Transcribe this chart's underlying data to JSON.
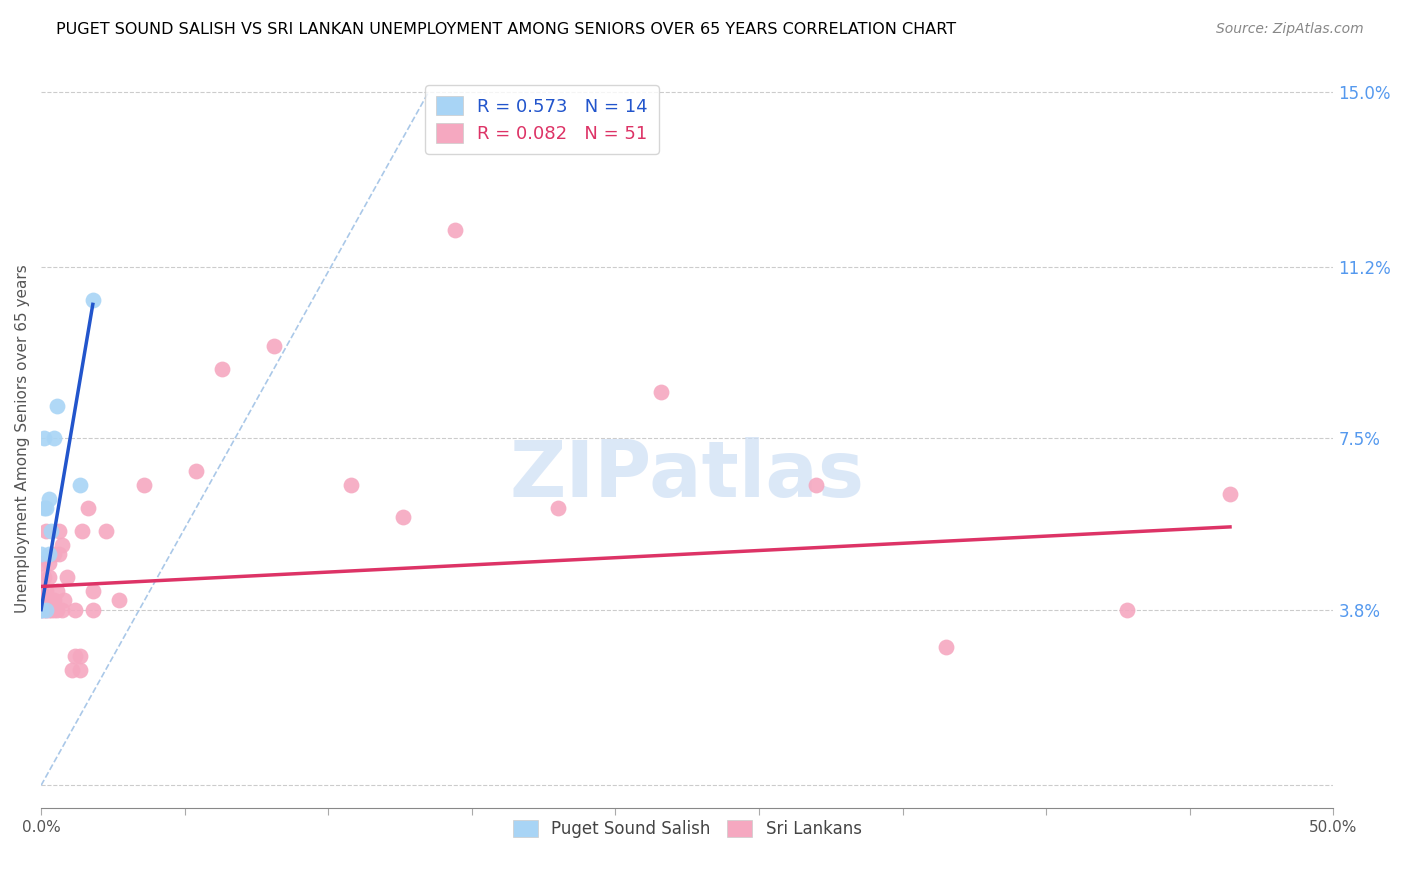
{
  "title": "PUGET SOUND SALISH VS SRI LANKAN UNEMPLOYMENT AMONG SENIORS OVER 65 YEARS CORRELATION CHART",
  "source": "Source: ZipAtlas.com",
  "ylabel": "Unemployment Among Seniors over 65 years",
  "xlim": [
    0.0,
    0.5
  ],
  "ylim": [
    -0.005,
    0.155
  ],
  "xticks": [
    0.0,
    0.05556,
    0.11111,
    0.16667,
    0.22222,
    0.27778,
    0.33333,
    0.38889,
    0.44444,
    0.5
  ],
  "xtick_labels_show": [
    "0.0%",
    "",
    "",
    "",
    "",
    "",
    "",
    "",
    "",
    "50.0%"
  ],
  "ytick_vals_right": [
    0.0,
    0.038,
    0.075,
    0.112,
    0.15
  ],
  "ytick_labels_right": [
    "",
    "3.8%",
    "7.5%",
    "11.2%",
    "15.0%"
  ],
  "legend1_label": "R = 0.573   N = 14",
  "legend2_label": "R = 0.082   N = 51",
  "puget_color": "#a8d4f5",
  "srilanka_color": "#f5a8c0",
  "puget_line_color": "#2255cc",
  "srilanka_line_color": "#dd3366",
  "diagonal_color": "#aac8e8",
  "watermark_text": "ZIPatlas",
  "watermark_color": "#cddff5",
  "puget_x": [
    0.0,
    0.0,
    0.0,
    0.001,
    0.001,
    0.002,
    0.002,
    0.003,
    0.003,
    0.004,
    0.005,
    0.006,
    0.015,
    0.02
  ],
  "puget_y": [
    0.038,
    0.038,
    0.05,
    0.06,
    0.075,
    0.038,
    0.06,
    0.062,
    0.05,
    0.055,
    0.075,
    0.082,
    0.065,
    0.105
  ],
  "srilanka_x": [
    0.0,
    0.0,
    0.0,
    0.0,
    0.001,
    0.001,
    0.001,
    0.002,
    0.002,
    0.002,
    0.003,
    0.003,
    0.003,
    0.003,
    0.004,
    0.004,
    0.005,
    0.005,
    0.005,
    0.006,
    0.006,
    0.007,
    0.007,
    0.008,
    0.008,
    0.009,
    0.01,
    0.012,
    0.013,
    0.013,
    0.015,
    0.015,
    0.016,
    0.018,
    0.02,
    0.02,
    0.025,
    0.03,
    0.04,
    0.06,
    0.07,
    0.09,
    0.12,
    0.14,
    0.16,
    0.2,
    0.24,
    0.3,
    0.35,
    0.42,
    0.46
  ],
  "srilanka_y": [
    0.038,
    0.04,
    0.042,
    0.048,
    0.038,
    0.04,
    0.045,
    0.038,
    0.042,
    0.055,
    0.038,
    0.04,
    0.045,
    0.048,
    0.038,
    0.04,
    0.038,
    0.04,
    0.05,
    0.038,
    0.042,
    0.05,
    0.055,
    0.038,
    0.052,
    0.04,
    0.045,
    0.025,
    0.028,
    0.038,
    0.025,
    0.028,
    0.055,
    0.06,
    0.038,
    0.042,
    0.055,
    0.04,
    0.065,
    0.068,
    0.09,
    0.095,
    0.065,
    0.058,
    0.12,
    0.06,
    0.085,
    0.065,
    0.03,
    0.038,
    0.063
  ],
  "puget_line_x": [
    0.0,
    0.02
  ],
  "puget_line_y_intercept": 0.038,
  "puget_line_slope": 3.3,
  "srilanka_line_x": [
    0.0,
    0.46
  ],
  "srilanka_line_y_intercept": 0.043,
  "srilanka_line_slope": 0.028
}
